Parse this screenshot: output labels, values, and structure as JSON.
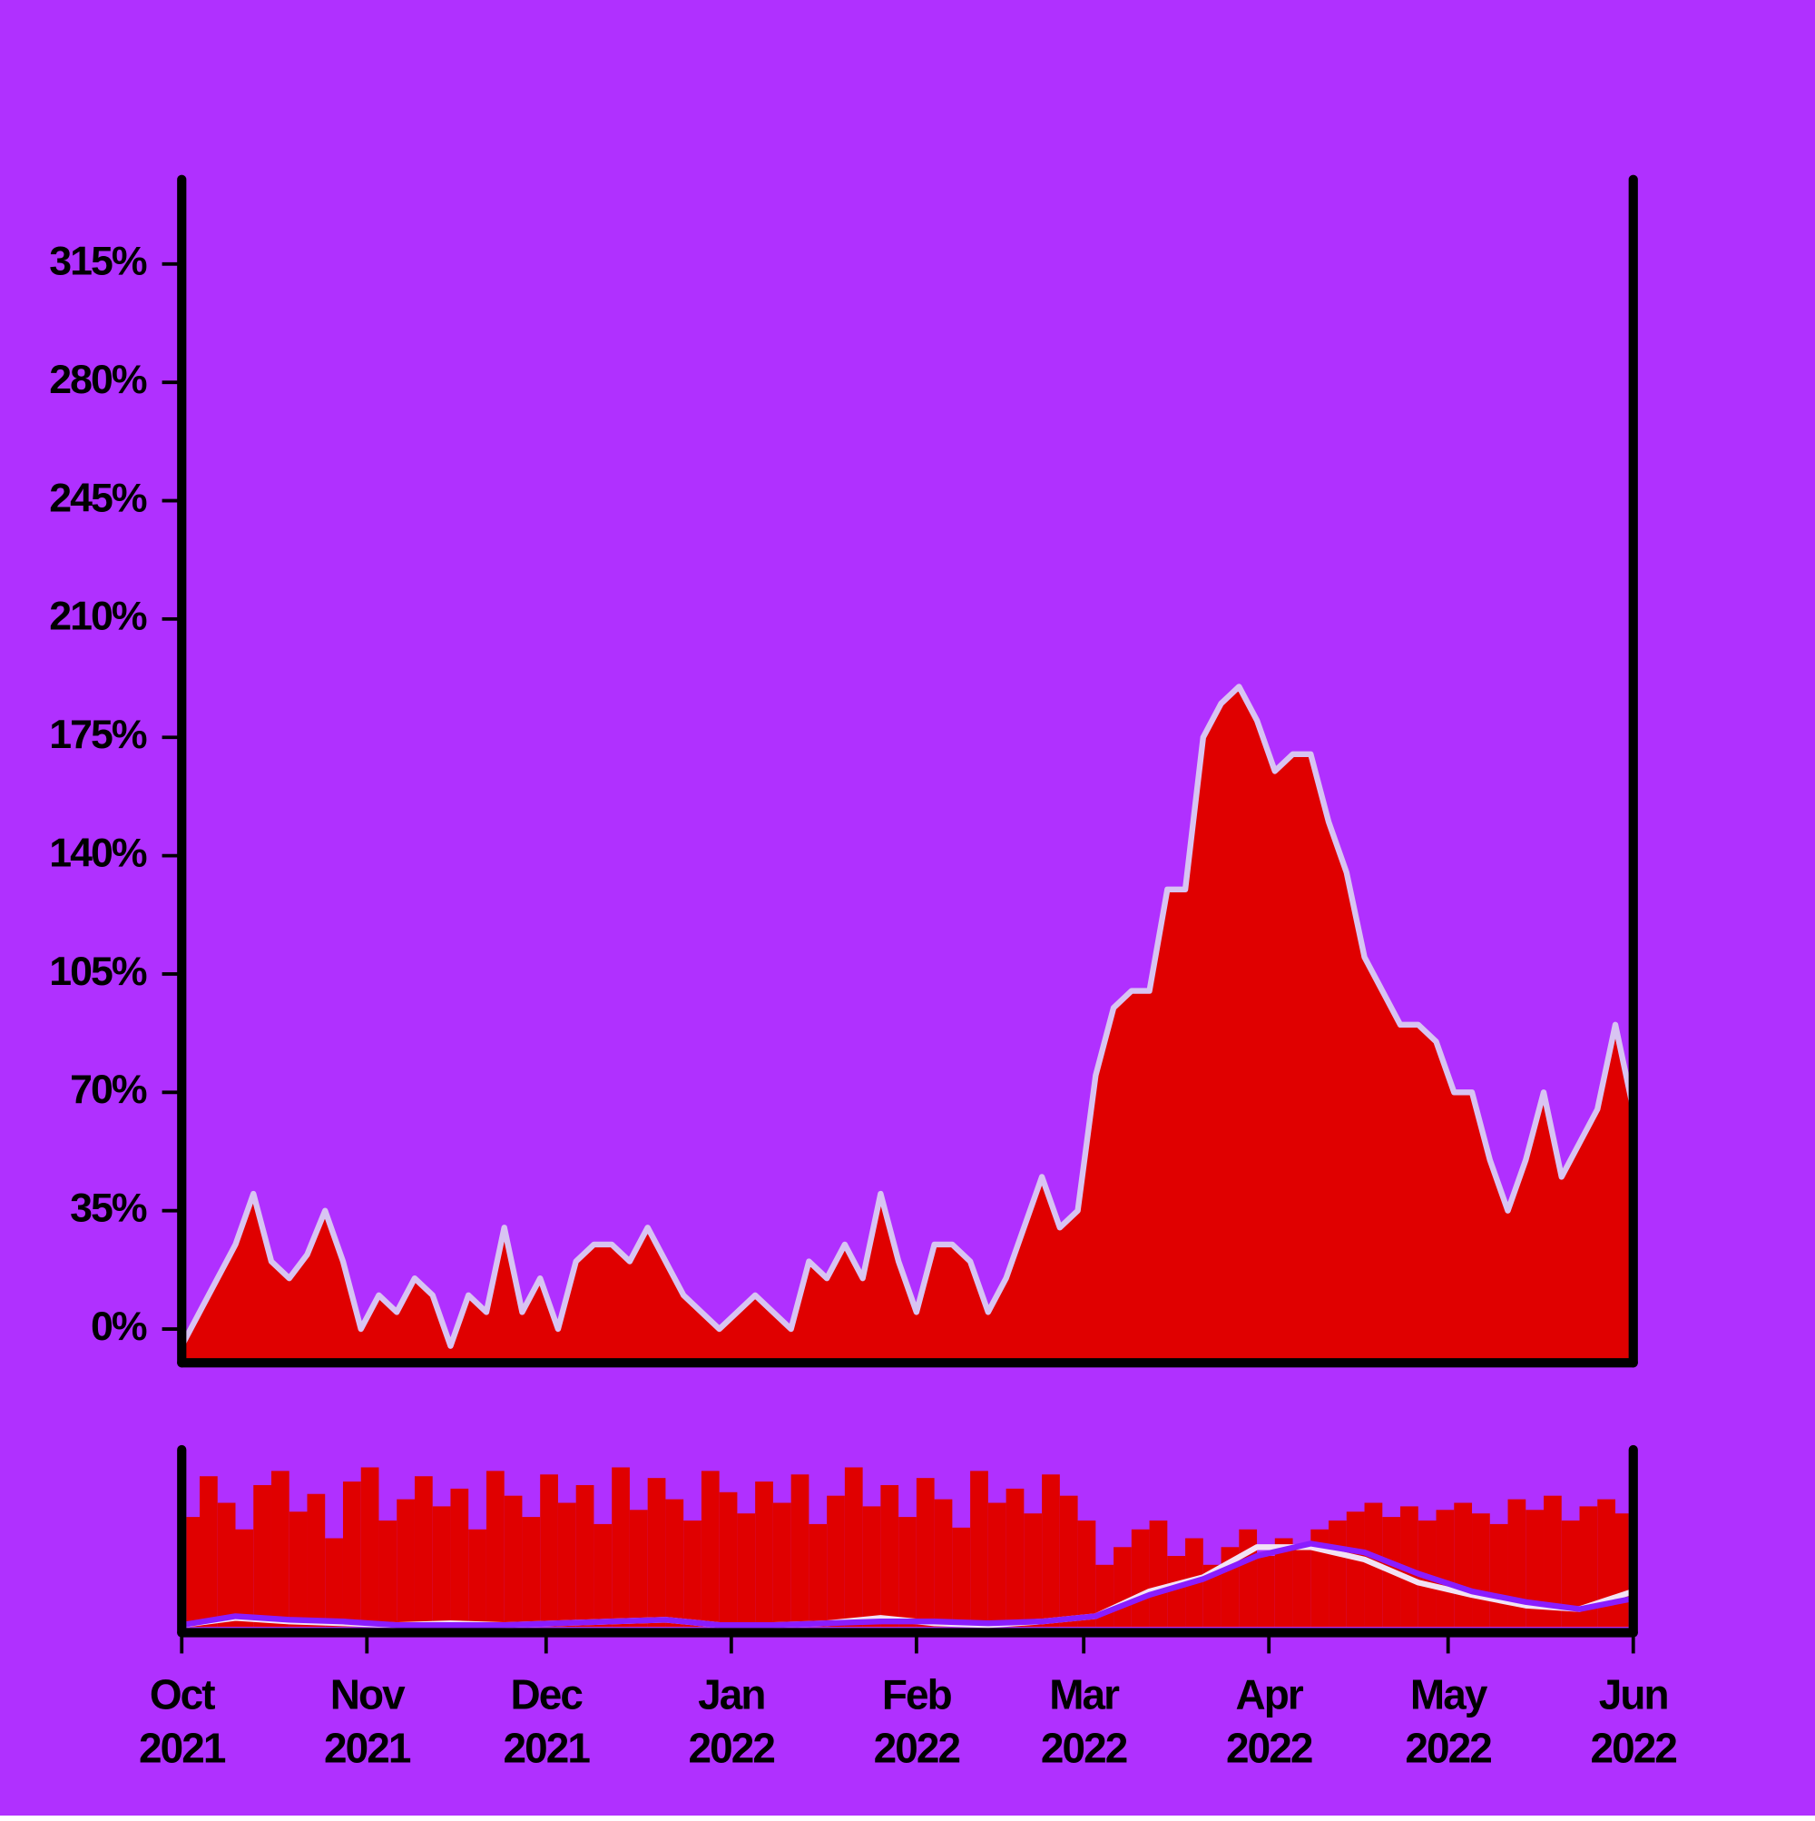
{
  "chart_data": {
    "type": "area",
    "background": "#b030ff",
    "area_color": "#e00000",
    "line_color": "#d8c4f2",
    "xlim": [
      0,
      243
    ],
    "xticks": [
      {
        "value": 0,
        "label": "Oct 2021"
      },
      {
        "value": 31,
        "label": "Nov 2021"
      },
      {
        "value": 61,
        "label": "Dec 2021"
      },
      {
        "value": 92,
        "label": "Jan 2022"
      },
      {
        "value": 123,
        "label": "Feb 2022"
      },
      {
        "value": 151,
        "label": "Mar 2022"
      },
      {
        "value": 182,
        "label": "Apr 2022"
      },
      {
        "value": 212,
        "label": "May 2022"
      },
      {
        "value": 243,
        "label": "Jun 2022"
      }
    ],
    "ylim": [
      -10,
      340
    ],
    "yticks": [
      {
        "value": 0,
        "label": "0%"
      },
      {
        "value": 35,
        "label": "35%"
      },
      {
        "value": 70,
        "label": "70%"
      },
      {
        "value": 105,
        "label": "105%"
      },
      {
        "value": 140,
        "label": "140%"
      },
      {
        "value": 175,
        "label": "175%"
      },
      {
        "value": 210,
        "label": "210%"
      },
      {
        "value": 245,
        "label": "245%"
      },
      {
        "value": 280,
        "label": "280%"
      },
      {
        "value": 315,
        "label": "315%"
      }
    ],
    "x": [
      0,
      3,
      6,
      9,
      12,
      15,
      18,
      21,
      24,
      27,
      30,
      33,
      36,
      39,
      42,
      45,
      48,
      51,
      54,
      57,
      60,
      63,
      66,
      69,
      72,
      75,
      78,
      81,
      84,
      87,
      90,
      93,
      96,
      99,
      102,
      105,
      108,
      111,
      114,
      117,
      120,
      123,
      126,
      129,
      132,
      135,
      138,
      141,
      144,
      147,
      150,
      153,
      156,
      159,
      162,
      165,
      168,
      171,
      174,
      177,
      180,
      183,
      186,
      189,
      192,
      195,
      198,
      201,
      204,
      207,
      210,
      213,
      216,
      219,
      222,
      225,
      228,
      231,
      234,
      237,
      240,
      243
    ],
    "values": [
      -5,
      5,
      15,
      25,
      40,
      20,
      15,
      22,
      35,
      20,
      0,
      10,
      5,
      15,
      10,
      -5,
      10,
      5,
      30,
      5,
      15,
      0,
      20,
      25,
      25,
      20,
      30,
      20,
      10,
      5,
      0,
      5,
      10,
      5,
      0,
      20,
      15,
      25,
      15,
      40,
      20,
      5,
      25,
      25,
      20,
      5,
      15,
      30,
      45,
      30,
      35,
      75,
      95,
      100,
      100,
      130,
      130,
      175,
      185,
      190,
      180,
      165,
      170,
      170,
      150,
      135,
      110,
      100,
      90,
      90,
      85,
      70,
      70,
      50,
      35,
      50,
      70,
      45,
      55,
      65,
      90,
      65
    ],
    "navigator": {
      "ylim": [
        0,
        100
      ],
      "bars": [
        62,
        85,
        70,
        55,
        80,
        88,
        65,
        75,
        50,
        82,
        90,
        60,
        72,
        85,
        68,
        78,
        55,
        88,
        74,
        62,
        86,
        70,
        80,
        58,
        90,
        66,
        84,
        72,
        60,
        88,
        76,
        64,
        82,
        70,
        86,
        58,
        74,
        90,
        68,
        80,
        62,
        84,
        72,
        56,
        88,
        70,
        78,
        64,
        86,
        74,
        60,
        35,
        45,
        55,
        60,
        40,
        50,
        35,
        45,
        55,
        40,
        50,
        45,
        55,
        60,
        65,
        70,
        62,
        68,
        60,
        66,
        70,
        64,
        58,
        72,
        66,
        74,
        60,
        68,
        72,
        64,
        66
      ],
      "line_x": [
        0,
        9,
        18,
        27,
        36,
        45,
        54,
        63,
        72,
        81,
        90,
        99,
        108,
        117,
        126,
        135,
        144,
        153,
        162,
        171,
        180,
        189,
        198,
        207,
        216,
        225,
        234,
        243
      ],
      "lines": [
        {
          "color": "#f2e2f4",
          "values": [
            1,
            5,
            3,
            2,
            1,
            2,
            1,
            2,
            3,
            4,
            1,
            1,
            2,
            5,
            2,
            1,
            3,
            6,
            20,
            28,
            45,
            45,
            38,
            25,
            18,
            12,
            10,
            20
          ]
        },
        {
          "color": "#8a1cff",
          "values": [
            1,
            6,
            4,
            3,
            1,
            1,
            1,
            2,
            3,
            4,
            1,
            1,
            2,
            3,
            3,
            2,
            3,
            6,
            18,
            27,
            40,
            47,
            42,
            30,
            20,
            14,
            10,
            16
          ]
        }
      ]
    }
  }
}
